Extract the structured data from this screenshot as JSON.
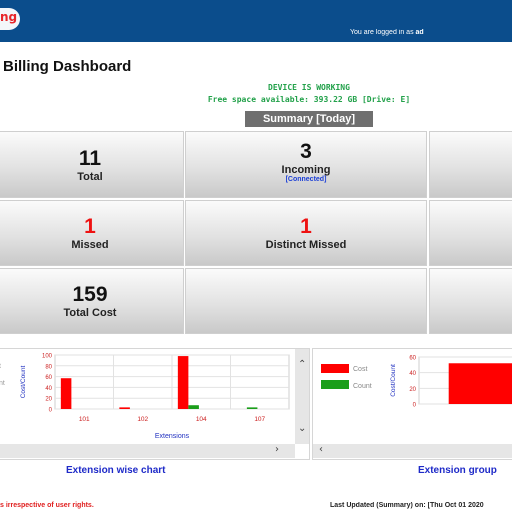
{
  "header": {
    "logo_text": "ng",
    "logged_in_prefix": "You are logged in as",
    "logged_in_user": "ad"
  },
  "page_title": "Billing Dashboard",
  "device_status": "DEVICE IS WORKING",
  "free_space": "Free space available: 393.22 GB [Drive: E]",
  "summary_label": "Summary [Today]",
  "cards": [
    {
      "number": "11",
      "label": "Total",
      "sub": ""
    },
    {
      "number": "3",
      "label": "Incoming",
      "sub": "[Connected]"
    },
    {
      "number": "1",
      "label": "Missed",
      "sub": ""
    },
    {
      "number": "1",
      "label": "Distinct Missed",
      "sub": ""
    },
    {
      "number": "159",
      "label": "Total Cost",
      "sub": ""
    }
  ],
  "colors": {
    "header": "#0b4d8c",
    "cost": "#ff0000",
    "count": "#1a9e1a",
    "status": "#22a14a",
    "link": "#1e2ac8"
  },
  "chart_data": [
    {
      "type": "bar",
      "title": "Extension wise chart",
      "categories": [
        "101",
        "102",
        "104",
        "107"
      ],
      "series": [
        {
          "name": "Cost",
          "values": [
            57,
            3,
            98,
            0
          ]
        },
        {
          "name": "Count",
          "values": [
            0,
            0,
            7,
            3
          ]
        }
      ],
      "legend_visible": [
        "t",
        "nt"
      ],
      "xlabel": "Extensions",
      "ylabel": "Cost/Count",
      "ylim": [
        0,
        100
      ],
      "yticks": [
        "100",
        "80",
        "60",
        "40",
        "20",
        "0"
      ]
    },
    {
      "type": "bar",
      "title": "Extension group",
      "categories": [
        ""
      ],
      "series": [
        {
          "name": "Cost",
          "values": [
            52
          ]
        },
        {
          "name": "Count",
          "values": [
            0
          ]
        }
      ],
      "xlabel": "",
      "ylabel": "Cost/Count",
      "ylim": [
        0,
        60
      ],
      "yticks": [
        "60",
        "40",
        "20",
        "0"
      ]
    }
  ],
  "chart_captions": [
    "Extension wise chart",
    "Extension group"
  ],
  "footer_left": "s irrespective of user rights.",
  "footer_right": "Last Updated (Summary) on: [Thu Oct 01 2020"
}
